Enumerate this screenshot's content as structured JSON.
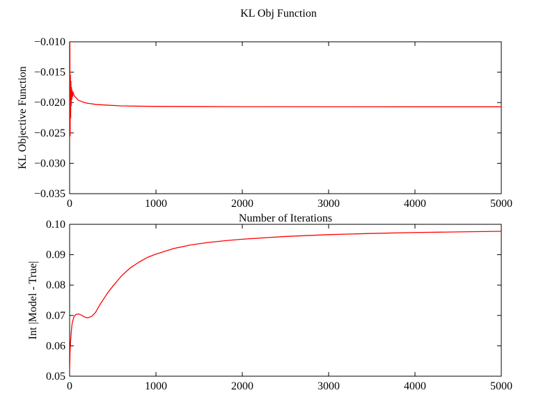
{
  "figure_title": "KL Obj Function",
  "chart_data": [
    {
      "type": "line",
      "title": "",
      "xlabel": "Number of Iterations",
      "ylabel": "KL Objective Function",
      "xlim": [
        0,
        5000
      ],
      "ylim": [
        -0.035,
        -0.01
      ],
      "x_ticks": [
        0,
        1000,
        2000,
        3000,
        4000,
        5000
      ],
      "x_tick_labels": [
        "0",
        "1000",
        "2000",
        "3000",
        "4000",
        "5000"
      ],
      "y_ticks": [
        -0.035,
        -0.03,
        -0.025,
        -0.02,
        -0.015,
        -0.01
      ],
      "y_tick_labels": [
        "−0.035",
        "−0.030",
        "−0.025",
        "−0.020",
        "−0.015",
        "−0.010"
      ],
      "grid": false,
      "line_color": "#ff0000",
      "series": [
        {
          "x": [
            0,
            3,
            6,
            9,
            12,
            15,
            18,
            22,
            26,
            30,
            35,
            40,
            50,
            60,
            80,
            100,
            150,
            200,
            300,
            400,
            600,
            800,
            1000,
            1500,
            2000,
            3000,
            4000,
            5000
          ],
          "y": [
            -0.0265,
            -0.01,
            -0.0255,
            -0.0155,
            -0.0225,
            -0.0165,
            -0.0205,
            -0.0175,
            -0.0195,
            -0.018,
            -0.019,
            -0.0183,
            -0.0188,
            -0.019,
            -0.0193,
            -0.0196,
            -0.0199,
            -0.0201,
            -0.0203,
            -0.0204,
            -0.02055,
            -0.0206,
            -0.02063,
            -0.02066,
            -0.02068,
            -0.02069,
            -0.0207,
            -0.0207
          ]
        }
      ]
    },
    {
      "type": "line",
      "title": "",
      "xlabel": "",
      "ylabel": "Int |Model - True|",
      "xlim": [
        0,
        5000
      ],
      "ylim": [
        0.05,
        0.1
      ],
      "x_ticks": [
        0,
        1000,
        2000,
        3000,
        4000,
        5000
      ],
      "x_tick_labels": [
        "0",
        "1000",
        "2000",
        "3000",
        "4000",
        "5000"
      ],
      "y_ticks": [
        0.05,
        0.06,
        0.07,
        0.08,
        0.09,
        0.1
      ],
      "y_tick_labels": [
        "0.05",
        "0.06",
        "0.07",
        "0.08",
        "0.09",
        "0.10"
      ],
      "grid": false,
      "line_color": "#ff0000",
      "series": [
        {
          "x": [
            0,
            5,
            10,
            20,
            30,
            50,
            70,
            100,
            130,
            160,
            200,
            230,
            260,
            300,
            350,
            400,
            450,
            500,
            600,
            700,
            800,
            900,
            1000,
            1200,
            1400,
            1600,
            1800,
            2000,
            2500,
            3000,
            3500,
            4000,
            4500,
            5000
          ],
          "y": [
            0.052,
            0.058,
            0.061,
            0.065,
            0.0675,
            0.0695,
            0.0703,
            0.0705,
            0.0702,
            0.0697,
            0.0692,
            0.0694,
            0.0698,
            0.071,
            0.0735,
            0.0757,
            0.0778,
            0.0796,
            0.083,
            0.0856,
            0.0875,
            0.0891,
            0.0902,
            0.092,
            0.0932,
            0.094,
            0.0946,
            0.0951,
            0.096,
            0.0966,
            0.097,
            0.0973,
            0.0975,
            0.0977
          ]
        }
      ]
    }
  ]
}
